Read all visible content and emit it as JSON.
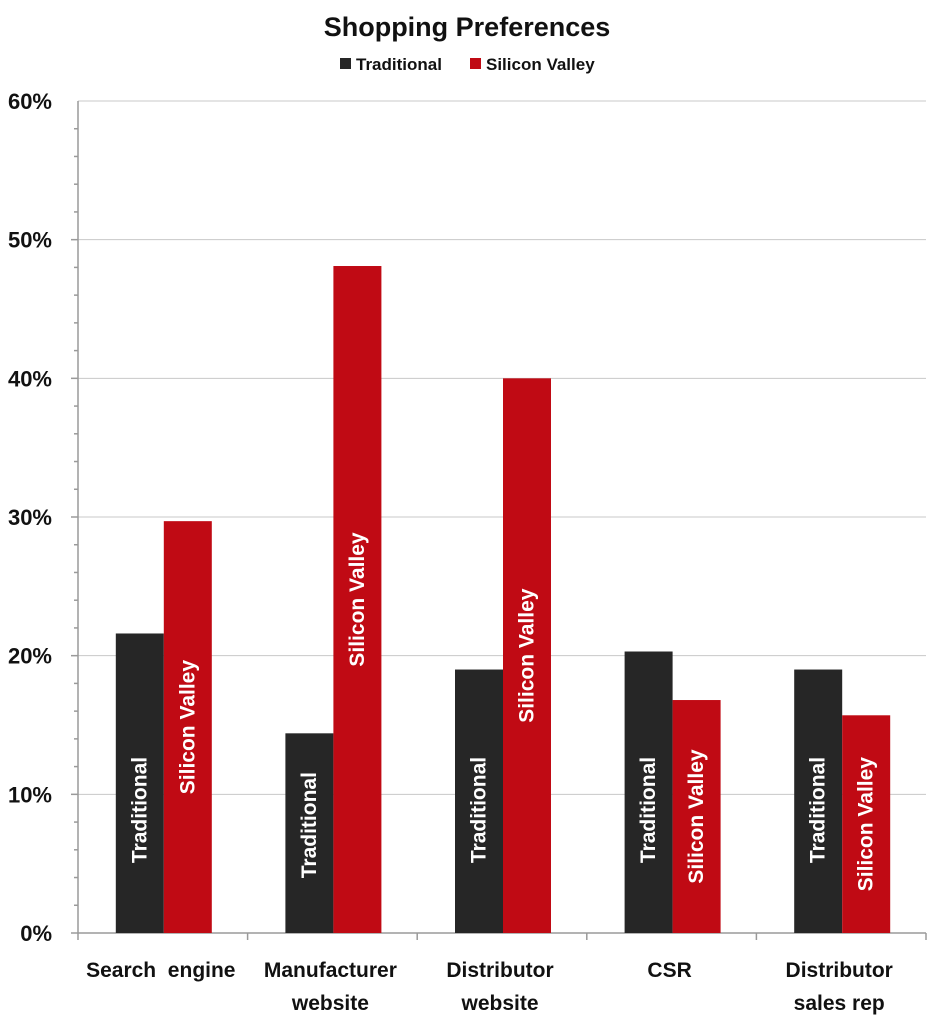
{
  "chart_data": {
    "type": "bar",
    "title": "Shopping Preferences",
    "categories": [
      [
        "Search  engine"
      ],
      [
        "Manufacturer",
        "website"
      ],
      [
        "Distributor",
        "website"
      ],
      [
        "CSR"
      ],
      [
        "Distributor",
        "sales rep"
      ]
    ],
    "series": [
      {
        "name": "Traditional",
        "color": "#262626",
        "label_color": "#ffffff",
        "values": [
          0.216,
          0.144,
          0.19,
          0.203,
          0.19
        ]
      },
      {
        "name": "Silicon Valley",
        "color": "#c00a14",
        "label_color": "#ffffff",
        "values": [
          0.297,
          0.481,
          0.4,
          0.168,
          0.157
        ]
      }
    ],
    "ylim": [
      0,
      0.6
    ],
    "yticks": [
      0,
      0.1,
      0.2,
      0.3,
      0.4,
      0.5,
      0.6
    ],
    "ytick_labels": [
      "0%",
      "10%",
      "20%",
      "30%",
      "40%",
      "50%",
      "60%"
    ],
    "grid": true,
    "legend": "top-center",
    "bar_labels": "inside-rotated"
  }
}
